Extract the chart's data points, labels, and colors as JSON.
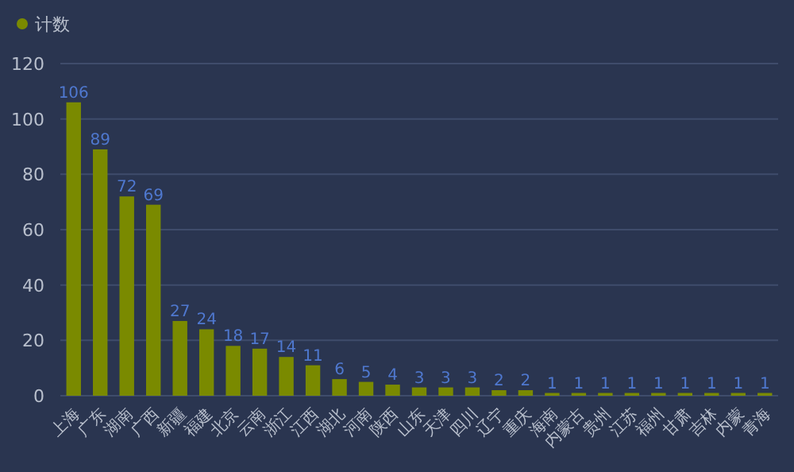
{
  "chart_data": {
    "type": "bar",
    "legend": "top left",
    "grid": "y",
    "data_labels": true,
    "categories": [
      "上海",
      "广东",
      "湖南",
      "广西",
      "新疆",
      "福建",
      "北京",
      "云南",
      "浙江",
      "江西",
      "湖北",
      "河南",
      "陕西",
      "山东",
      "天津",
      "四川",
      "辽宁",
      "重庆",
      "海南",
      "内蒙古",
      "贵州",
      "江苏",
      "福州",
      "甘肃",
      "吉林",
      "内蒙",
      "青海"
    ],
    "series": [
      {
        "name": "计数",
        "color": "#7a8a00",
        "values": [
          106,
          89,
          72,
          69,
          27,
          24,
          18,
          17,
          14,
          11,
          6,
          5,
          4,
          3,
          3,
          3,
          2,
          2,
          1,
          1,
          1,
          1,
          1,
          1,
          1,
          1,
          1
        ]
      }
    ],
    "ylim": [
      0,
      120
    ],
    "yticks": [
      0,
      20,
      40,
      60,
      80,
      100,
      120
    ]
  }
}
